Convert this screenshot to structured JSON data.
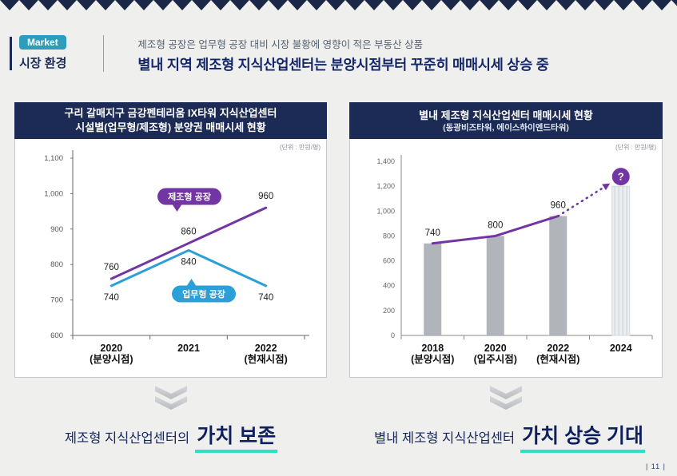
{
  "top": {
    "market_badge": "Market",
    "section_title": "시장 환경",
    "subtitle": "제조형 공장은 업무형 공장 대비 시장 불황에 영향이 적은 부동산 상품",
    "headline": "별내 지역 제조형 지식산업센터는 분양시점부터 꾸준히 매매시세 상승 중"
  },
  "panels": {
    "left": {
      "title_line1": "구리 갈매지구 금강펜테리움 IX타워 지식산업센터",
      "title_line2": "시설별(업무형/제조형) 분양권 매매시세 현황",
      "unit_label": "(단위 : 만원/평)",
      "caption_text": "제조형 지식산업센터의",
      "caption_highlight": "가치 보존"
    },
    "right": {
      "title_line1": "별내 제조형 지식산업센터 매매시세 현황",
      "title_line2": "(동광비즈타워, 에이스하이엔드타워)",
      "unit_label": "(단위 : 만원/평)",
      "caption_text": "별내 제조형 지식산업센터",
      "caption_highlight": "가치 상승 기대"
    }
  },
  "footer": {
    "page_number": "| 11 |"
  },
  "colors": {
    "navy": "#1c2b55",
    "purple": "#7334a4",
    "blue": "#2b9fd8",
    "badge_teal": "#2e9cbd",
    "mint": "#2ee0c4",
    "bar_gray": "#b2b4bb"
  },
  "chart_data": [
    {
      "type": "line",
      "title": "구리 갈매지구 금강펜테리움 IX타워 지식산업센터 시설별(업무형/제조형) 분양권 매매시세 현황",
      "unit": "만원/평",
      "categories": [
        {
          "label": "2020",
          "sub": "(분양시점)"
        },
        {
          "label": "2021",
          "sub": ""
        },
        {
          "label": "2022",
          "sub": "(현재시점)"
        }
      ],
      "series": [
        {
          "name": "제조형 공장",
          "color": "#7334a4",
          "values": [
            760,
            860,
            960
          ],
          "label_position": "above"
        },
        {
          "name": "업무형 공장",
          "color": "#2b9fd8",
          "values": [
            740,
            840,
            740
          ],
          "label_position": "below"
        }
      ],
      "ylim": [
        600,
        1100
      ],
      "ytick_step": 100,
      "grid": false,
      "legend": "badges-on-plot"
    },
    {
      "type": "bar",
      "title": "별내 제조형 지식산업센터 매매시세 현황 (동광비즈타워, 에이스하이엔드타워)",
      "unit": "만원/평",
      "categories": [
        {
          "label": "2018",
          "sub": "(분양시점)"
        },
        {
          "label": "2020",
          "sub": "(입주시점)"
        },
        {
          "label": "2022",
          "sub": "(현재시점)"
        },
        {
          "label": "2024",
          "sub": ""
        }
      ],
      "values": [
        740,
        800,
        960,
        null
      ],
      "overlay_line": {
        "color": "#7334a4",
        "values": [
          740,
          800,
          960
        ]
      },
      "projection": {
        "index": 3,
        "approx_value": 1200,
        "marker": "?"
      },
      "ylim": [
        0,
        1400
      ],
      "ytick_step": 200,
      "grid": false
    }
  ]
}
